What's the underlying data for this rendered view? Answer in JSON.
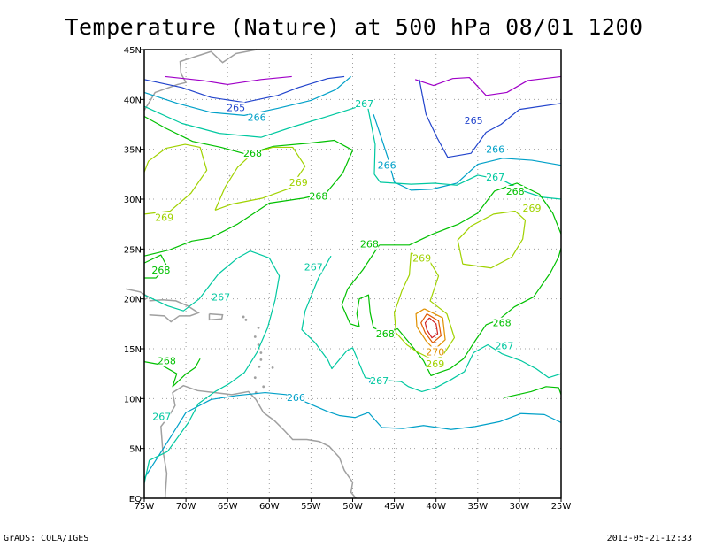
{
  "chart_data": {
    "type": "contour",
    "title": "Temperature (Nature) at 500 hPa 08/01 1200",
    "variable": "Temperature",
    "level": "500 hPa",
    "x_ticks": [
      "75W",
      "70W",
      "65W",
      "60W",
      "55W",
      "50W",
      "45W",
      "40W",
      "35W",
      "30W",
      "25W"
    ],
    "y_ticks": [
      "EQ",
      "5N",
      "10N",
      "15N",
      "20N",
      "25N",
      "30N",
      "35N",
      "40N",
      "45N"
    ],
    "xlim": [
      -75,
      -25
    ],
    "ylim": [
      0,
      45
    ],
    "grid": true,
    "contour_levels": [
      {
        "value": 265,
        "label": "265",
        "color": "#2244cc"
      },
      {
        "value": 266,
        "label": "266",
        "color": "#00a0c8"
      },
      {
        "value": 267,
        "label": "267",
        "color": "#00c8a0"
      },
      {
        "value": 268,
        "label": "268",
        "color": "#00c000"
      },
      {
        "value": 269,
        "label": "269",
        "color": "#a0d200"
      },
      {
        "value": 270,
        "label": "270",
        "color": "#e09000"
      },
      {
        "value": 271,
        "label": "",
        "color": "#e05a00"
      },
      {
        "value": 272,
        "label": "",
        "color": "#d02020"
      },
      {
        "value": 264,
        "label": "",
        "color": "#a000c8"
      }
    ],
    "contour_labels": [
      {
        "text": "265",
        "lon": -64.0,
        "lat": 39.2,
        "color": "#2244cc"
      },
      {
        "text": "265",
        "lon": -35.5,
        "lat": 37.9,
        "color": "#2244cc"
      },
      {
        "text": "266",
        "lon": -61.5,
        "lat": 38.2,
        "color": "#00a0c8"
      },
      {
        "text": "266",
        "lon": -45.9,
        "lat": 33.4,
        "color": "#00a0c8"
      },
      {
        "text": "266",
        "lon": -32.9,
        "lat": 35.0,
        "color": "#00a0c8"
      },
      {
        "text": "266",
        "lon": -56.8,
        "lat": 10.1,
        "color": "#00a0c8"
      },
      {
        "text": "267",
        "lon": -48.6,
        "lat": 39.6,
        "color": "#00c8a0"
      },
      {
        "text": "267",
        "lon": -32.9,
        "lat": 32.2,
        "color": "#00c8a0"
      },
      {
        "text": "267",
        "lon": -54.7,
        "lat": 23.2,
        "color": "#00c8a0"
      },
      {
        "text": "267",
        "lon": -65.8,
        "lat": 20.2,
        "color": "#00c8a0"
      },
      {
        "text": "267",
        "lon": -72.9,
        "lat": 8.2,
        "color": "#00c8a0"
      },
      {
        "text": "267",
        "lon": -46.8,
        "lat": 11.8,
        "color": "#00c8a0"
      },
      {
        "text": "267",
        "lon": -31.8,
        "lat": 15.3,
        "color": "#00c8a0"
      },
      {
        "text": "268",
        "lon": -62.0,
        "lat": 34.6,
        "color": "#00c000"
      },
      {
        "text": "268",
        "lon": -54.1,
        "lat": 30.3,
        "color": "#00c000"
      },
      {
        "text": "268",
        "lon": -48.0,
        "lat": 25.5,
        "color": "#00c000"
      },
      {
        "text": "268",
        "lon": -30.5,
        "lat": 30.8,
        "color": "#00c000"
      },
      {
        "text": "268",
        "lon": -73.0,
        "lat": 22.9,
        "color": "#00c000"
      },
      {
        "text": "268",
        "lon": -46.1,
        "lat": 16.5,
        "color": "#00c000"
      },
      {
        "text": "268",
        "lon": -32.1,
        "lat": 17.6,
        "color": "#00c000"
      },
      {
        "text": "268",
        "lon": -72.3,
        "lat": 13.8,
        "color": "#00c000"
      },
      {
        "text": "269",
        "lon": -56.5,
        "lat": 31.7,
        "color": "#a0d200"
      },
      {
        "text": "269",
        "lon": -72.6,
        "lat": 28.2,
        "color": "#a0d200"
      },
      {
        "text": "269",
        "lon": -28.5,
        "lat": 29.1,
        "color": "#a0d200"
      },
      {
        "text": "269",
        "lon": -41.7,
        "lat": 24.1,
        "color": "#a0d200"
      },
      {
        "text": "269",
        "lon": -40.1,
        "lat": 13.5,
        "color": "#a0d200"
      },
      {
        "text": "270",
        "lon": -40.1,
        "lat": 14.7,
        "color": "#e09000"
      }
    ]
  },
  "footer": {
    "left": "GrADS: COLA/IGES",
    "right": "2013-05-21-12:33"
  },
  "colors": {
    "frame": "#000000",
    "grid": "#a0a0a0",
    "coastline": "#a0a0a0"
  }
}
